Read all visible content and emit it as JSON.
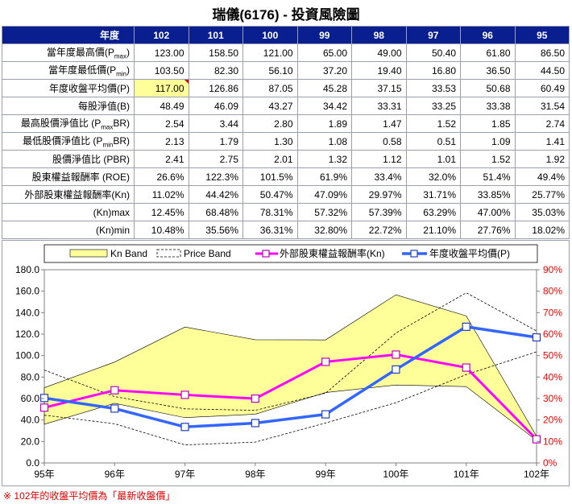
{
  "title": "瑞儀(6176) -  投資風險圖",
  "table": {
    "corner_label": "年度",
    "columns": [
      "102",
      "101",
      "100",
      "99",
      "98",
      "97",
      "96",
      "95"
    ],
    "rows": [
      {
        "label": "當年度最高價(Pmax)",
        "label_main": "當年度最高價(P",
        "label_sub": "max",
        "label_end": ")",
        "values": [
          "123.00",
          "158.50",
          "121.00",
          "65.00",
          "49.00",
          "50.40",
          "61.80",
          "86.50"
        ]
      },
      {
        "label": "當年度最低價(Pmin)",
        "label_main": "當年度最低價(P",
        "label_sub": "min",
        "label_end": ")",
        "values": [
          "103.50",
          "82.30",
          "56.10",
          "37.20",
          "19.40",
          "16.80",
          "36.50",
          "44.50"
        ]
      },
      {
        "label": "年度收盤平均價(P)",
        "label_main": "年度收盤平均價(P)",
        "label_sub": "",
        "label_end": "",
        "values": [
          "117.00",
          "126.86",
          "87.05",
          "45.28",
          "37.15",
          "33.53",
          "50.68",
          "60.49"
        ]
      },
      {
        "label": "每股淨值(B)",
        "label_main": "每股淨值(B)",
        "label_sub": "",
        "label_end": "",
        "values": [
          "48.49",
          "46.09",
          "43.27",
          "34.42",
          "33.31",
          "33.25",
          "33.38",
          "31.54"
        ]
      },
      {
        "label": "最高股價淨值比 (PmaxBR)",
        "label_main": "最高股價淨值比 (P",
        "label_sub": "max",
        "label_end": "BR)",
        "values": [
          "2.54",
          "3.44",
          "2.80",
          "1.89",
          "1.47",
          "1.52",
          "1.85",
          "2.74"
        ]
      },
      {
        "label": "最低股價淨值比 (PminBR)",
        "label_main": "最低股價淨值比 (P",
        "label_sub": "min",
        "label_end": "BR)",
        "values": [
          "2.13",
          "1.79",
          "1.30",
          "1.08",
          "0.58",
          "0.51",
          "1.09",
          "1.41"
        ]
      },
      {
        "label": "股價淨值比 (PBR)",
        "label_main": "股價淨值比 (PBR)",
        "label_sub": "",
        "label_end": "",
        "values": [
          "2.41",
          "2.75",
          "2.01",
          "1.32",
          "1.12",
          "1.01",
          "1.52",
          "1.92"
        ]
      },
      {
        "label": "股東權益報酬率 (ROE)",
        "label_main": "股東權益報酬率 (ROE)",
        "label_sub": "",
        "label_end": "",
        "values": [
          "26.6%",
          "122.3%",
          "101.5%",
          "61.9%",
          "33.4%",
          "32.0%",
          "51.4%",
          "49.4%"
        ]
      },
      {
        "label": "外部股東權益報酬率(Kn)",
        "label_main": "外部股東權益報酬率(Kn)",
        "label_sub": "",
        "label_end": "",
        "values": [
          "11.02%",
          "44.42%",
          "50.47%",
          "47.09%",
          "29.97%",
          "31.71%",
          "33.85%",
          "25.77%"
        ]
      },
      {
        "label": "(Kn)max",
        "label_main": "(Kn)max",
        "label_sub": "",
        "label_end": "",
        "values": [
          "12.45%",
          "68.48%",
          "78.31%",
          "57.32%",
          "57.39%",
          "63.29%",
          "47.00%",
          "35.03%"
        ]
      },
      {
        "label": "(Kn)min",
        "label_main": "(Kn)min",
        "label_sub": "",
        "label_end": "",
        "values": [
          "10.48%",
          "35.56%",
          "36.31%",
          "32.80%",
          "22.72%",
          "21.10%",
          "27.76%",
          "18.02%"
        ]
      }
    ]
  },
  "colors": {
    "header_bg": "#0a1f8f",
    "kn_band": "#ffff99",
    "kn_line": "#ff00ff",
    "p_line": "#3366ff",
    "right_axis": "#ff0000",
    "note": "#e00000"
  },
  "chart_data": {
    "type": "line",
    "categories": [
      "95年",
      "96年",
      "97年",
      "98年",
      "99年",
      "100年",
      "101年",
      "102年"
    ],
    "left_axis": {
      "min": 0,
      "max": 180,
      "step": 20,
      "tick_labels": [
        "0.0",
        "20.0",
        "40.0",
        "60.0",
        "80.0",
        "100.0",
        "120.0",
        "140.0",
        "160.0",
        "180.0"
      ]
    },
    "right_axis": {
      "min": 0,
      "max": 90,
      "step": 10,
      "tick_labels": [
        "0%",
        "10%",
        "20%",
        "30%",
        "40%",
        "50%",
        "60%",
        "70%",
        "80%",
        "90%"
      ]
    },
    "legend": [
      "Kn Band",
      "Price Band",
      "外部股東權益報酬率(Kn)",
      "年度收盤平均價(P)"
    ],
    "series": [
      {
        "name": "Kn Band max",
        "axis": "right",
        "values": [
          35.03,
          47.0,
          63.29,
          57.39,
          57.32,
          78.31,
          68.48,
          12.45
        ]
      },
      {
        "name": "Kn Band min",
        "axis": "right",
        "values": [
          18.02,
          27.76,
          21.1,
          22.72,
          32.8,
          36.31,
          35.56,
          10.48
        ]
      },
      {
        "name": "Price Band max",
        "axis": "left",
        "values": [
          86.5,
          61.8,
          50.4,
          49.0,
          65.0,
          121.0,
          158.5,
          123.0
        ]
      },
      {
        "name": "Price Band min",
        "axis": "left",
        "values": [
          44.5,
          36.5,
          16.8,
          19.4,
          37.2,
          56.1,
          82.3,
          103.5
        ]
      },
      {
        "name": "外部股東權益報酬率(Kn)",
        "axis": "right",
        "values": [
          25.77,
          33.85,
          31.71,
          29.97,
          47.09,
          50.47,
          44.42,
          11.02
        ]
      },
      {
        "name": "年度收盤平均價(P)",
        "axis": "left",
        "values": [
          60.49,
          50.68,
          33.53,
          37.15,
          45.28,
          87.05,
          126.86,
          117.0
        ]
      }
    ]
  },
  "footnote": "※ 102年的收盤平均價為「最新收盤價」"
}
